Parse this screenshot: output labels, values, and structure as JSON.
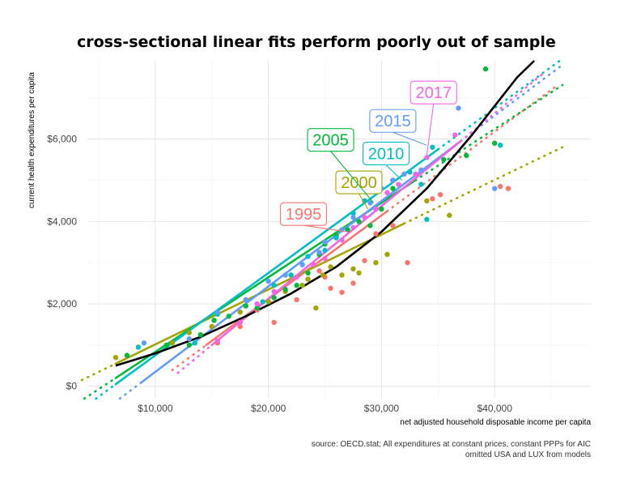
{
  "chart_data": {
    "type": "scatter",
    "title": "cross-sectional linear fits perform poorly out of sample",
    "xlabel": "net adjusted household disposable income per capita",
    "ylabel": "current health expenditures per capita",
    "caption_lines": [
      "source: OECD.stat; All expenditures at constant prices, constant PPPs for AIC",
      "omitted USA and LUX from models"
    ],
    "xlim": [
      4000,
      48500
    ],
    "ylim": [
      -300,
      7900
    ],
    "x_ticks": [
      10000,
      20000,
      30000,
      40000
    ],
    "x_tick_labels": [
      "$10,000",
      "$20,000",
      "$30,000",
      "$40,000"
    ],
    "y_ticks": [
      0,
      2000,
      4000,
      6000
    ],
    "y_tick_labels": [
      "$0",
      "$2,000",
      "$4,000",
      "$6,000"
    ],
    "grid": true,
    "legend": "none (year labels placed on chart)",
    "colors": {
      "1995": "#F8766D",
      "2000": "#A3A500",
      "2005": "#00BA38",
      "2010": "#00BFC4",
      "2015": "#619CFF",
      "2017": "#F564E3",
      "overall": "#000000"
    },
    "series": [
      {
        "name": "1995",
        "fit": {
          "x0": 14500,
          "y0": 1000,
          "x_end": 30500,
          "y_end": 4250,
          "slope": 0.203,
          "x_ext_end": 45500
        },
        "label": {
          "text": "1995",
          "x": 23100,
          "y": 4180,
          "anchor_x": 27000,
          "anchor_y": 3750
        },
        "points": [
          [
            15500,
            1050
          ],
          [
            17500,
            1450
          ],
          [
            19000,
            1850
          ],
          [
            20500,
            1550
          ],
          [
            21500,
            2300
          ],
          [
            22500,
            2100
          ],
          [
            23500,
            2600
          ],
          [
            24500,
            2800
          ],
          [
            25000,
            2650
          ],
          [
            25500,
            2380
          ],
          [
            26500,
            2280
          ],
          [
            27500,
            2500
          ],
          [
            28500,
            3050
          ],
          [
            29500,
            3700
          ],
          [
            31000,
            3900
          ],
          [
            32300,
            3000
          ],
          [
            34500,
            4550
          ],
          [
            35200,
            4650
          ],
          [
            40500,
            4850
          ],
          [
            41200,
            4800
          ]
        ]
      },
      {
        "name": "2000",
        "fit": {
          "x0": 6500,
          "y0": 550,
          "x_end": 32000,
          "y_end": 3950,
          "slope": 0.133,
          "x_ext_end": 46000
        },
        "label": {
          "text": "2000",
          "x": 28000,
          "y": 4950,
          "anchor_x": 28800,
          "anchor_y": 4300
        },
        "points": [
          [
            6500,
            700
          ],
          [
            11500,
            1050
          ],
          [
            13000,
            1300
          ],
          [
            15000,
            1450
          ],
          [
            17500,
            1800
          ],
          [
            20000,
            2050
          ],
          [
            21500,
            2300
          ],
          [
            23000,
            2450
          ],
          [
            23500,
            2600
          ],
          [
            24200,
            1900
          ],
          [
            24800,
            2700
          ],
          [
            25500,
            2900
          ],
          [
            26500,
            2700
          ],
          [
            27500,
            2850
          ],
          [
            28000,
            2750
          ],
          [
            29500,
            3000
          ],
          [
            30500,
            3200
          ],
          [
            34000,
            4500
          ],
          [
            36000,
            4150
          ]
        ]
      },
      {
        "name": "2005",
        "fit": {
          "x0": 6500,
          "y0": 200,
          "x_end": 33000,
          "y_end": 5000,
          "slope": 0.18,
          "x_ext_end": 46000
        },
        "label": {
          "text": "2005",
          "x": 25500,
          "y": 5980,
          "anchor_x": 29300,
          "anchor_y": 4450
        },
        "points": [
          [
            7500,
            750
          ],
          [
            11000,
            1000
          ],
          [
            13000,
            1000
          ],
          [
            14000,
            1250
          ],
          [
            15200,
            1600
          ],
          [
            16500,
            1700
          ],
          [
            18000,
            1950
          ],
          [
            19000,
            1900
          ],
          [
            20500,
            2150
          ],
          [
            21500,
            2350
          ],
          [
            22500,
            2450
          ],
          [
            23500,
            2750
          ],
          [
            24500,
            3200
          ],
          [
            25000,
            3450
          ],
          [
            26000,
            3650
          ],
          [
            27000,
            3800
          ],
          [
            28000,
            4000
          ],
          [
            29000,
            3900
          ],
          [
            30000,
            4300
          ],
          [
            31000,
            4800
          ],
          [
            35500,
            5500
          ],
          [
            37500,
            5600
          ],
          [
            40000,
            5900
          ],
          [
            39200,
            7700
          ]
        ]
      },
      {
        "name": "2010",
        "fit": {
          "x0": 6500,
          "y0": 50,
          "x_end": 35000,
          "y_end": 5750,
          "slope": 0.2,
          "x_ext_end": 46000
        },
        "label": {
          "text": "2010",
          "x": 30400,
          "y": 5650,
          "anchor_x": 31800,
          "anchor_y": 5000
        },
        "points": [
          [
            8500,
            950
          ],
          [
            13500,
            1050
          ],
          [
            15500,
            1750
          ],
          [
            17500,
            1550
          ],
          [
            19500,
            2050
          ],
          [
            20500,
            2450
          ],
          [
            22000,
            2700
          ],
          [
            23500,
            3150
          ],
          [
            25000,
            3300
          ],
          [
            26000,
            3600
          ],
          [
            27500,
            4200
          ],
          [
            28500,
            4500
          ],
          [
            29500,
            4800
          ],
          [
            31000,
            5000
          ],
          [
            32500,
            5200
          ],
          [
            33500,
            4900
          ],
          [
            34500,
            5800
          ],
          [
            34000,
            4050
          ],
          [
            40500,
            5850
          ]
        ]
      },
      {
        "name": "2015",
        "fit": {
          "x0": 8800,
          "y0": 100,
          "x_end": 37000,
          "y_end": 5950,
          "slope": 0.207,
          "x_ext_end": 46000
        },
        "label": {
          "text": "2015",
          "x": 31000,
          "y": 6440,
          "anchor_x": 34000,
          "anchor_y": 5850
        },
        "points": [
          [
            9000,
            1050
          ],
          [
            13000,
            1150
          ],
          [
            15500,
            1800
          ],
          [
            18000,
            2100
          ],
          [
            20000,
            2550
          ],
          [
            21500,
            2700
          ],
          [
            23000,
            2950
          ],
          [
            24500,
            3250
          ],
          [
            25000,
            3500
          ],
          [
            26500,
            3800
          ],
          [
            27500,
            4100
          ],
          [
            29000,
            4450
          ],
          [
            30000,
            4800
          ],
          [
            31000,
            5000
          ],
          [
            32000,
            5150
          ],
          [
            33500,
            5250
          ],
          [
            36800,
            6750
          ],
          [
            40000,
            4800
          ]
        ]
      },
      {
        "name": "2017",
        "fit": {
          "x0": 15000,
          "y0": 1000,
          "x_end": 37000,
          "y_end": 5950,
          "slope": 0.225,
          "x_ext_end": 44500
        },
        "label": {
          "text": "2017",
          "x": 34600,
          "y": 7130,
          "anchor_x": 34000,
          "anchor_y": 5600
        },
        "points": [
          [
            15500,
            1100
          ],
          [
            17500,
            1550
          ],
          [
            19000,
            2000
          ],
          [
            20500,
            2300
          ],
          [
            22500,
            2650
          ],
          [
            24000,
            2950
          ],
          [
            25000,
            3100
          ],
          [
            26500,
            3550
          ],
          [
            27500,
            3850
          ],
          [
            28500,
            4100
          ],
          [
            29500,
            4300
          ],
          [
            30500,
            4700
          ],
          [
            31500,
            4900
          ],
          [
            33000,
            5150
          ],
          [
            34000,
            5550
          ],
          [
            36500,
            6100
          ]
        ]
      }
    ],
    "overall_fit": {
      "name": "all years (curved)",
      "x": [
        6500,
        10000,
        14000,
        18000,
        22000,
        26000,
        30000,
        34000,
        38000,
        42000,
        43500
      ],
      "y": [
        500,
        800,
        1200,
        1700,
        2250,
        2900,
        3750,
        4800,
        6100,
        7500,
        7950
      ]
    }
  }
}
